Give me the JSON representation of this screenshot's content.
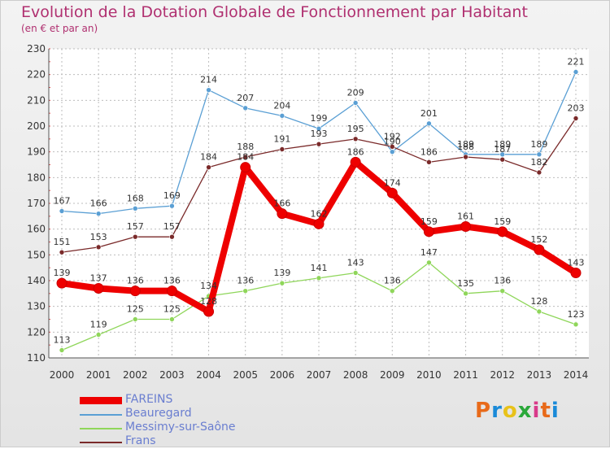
{
  "header": {
    "title": "Evolution de la Dotation Globale de Fonctionnement par Habitant",
    "subtitle": "(en € et par an)"
  },
  "logo": {
    "text": "Proxiti",
    "colors": [
      "#e86a1a",
      "#1a8ad8",
      "#e8c21a",
      "#2aa83a",
      "#d83a8a"
    ]
  },
  "chart_data": {
    "type": "line",
    "x": [
      "2000",
      "2001",
      "2002",
      "2003",
      "2004",
      "2005",
      "2006",
      "2007",
      "2008",
      "2009",
      "2010",
      "2011",
      "2012",
      "2013",
      "2014"
    ],
    "ylim": [
      110,
      230
    ],
    "yticks": [
      110,
      120,
      130,
      140,
      150,
      160,
      170,
      180,
      190,
      200,
      210,
      220,
      230
    ],
    "grid": true,
    "legend_position": "bottom-left",
    "series": [
      {
        "name": "FAREINS",
        "color": "#ee0000",
        "values": [
          139,
          137,
          136,
          136,
          128,
          184,
          166,
          162,
          186,
          174,
          159,
          161,
          159,
          152,
          143
        ]
      },
      {
        "name": "Beauregard",
        "color": "#5a9fd4",
        "values": [
          167,
          166,
          168,
          169,
          214,
          207,
          204,
          199,
          209,
          190,
          201,
          189,
          189,
          189,
          221
        ]
      },
      {
        "name": "Messimy-sur-Saône",
        "color": "#8fd65a",
        "values": [
          113,
          119,
          125,
          125,
          134,
          136,
          139,
          141,
          143,
          136,
          147,
          135,
          136,
          128,
          123
        ]
      },
      {
        "name": "Frans",
        "color": "#7a2a2a",
        "values": [
          151,
          153,
          157,
          157,
          184,
          188,
          191,
          193,
          195,
          192,
          186,
          188,
          187,
          182,
          203
        ]
      }
    ]
  }
}
